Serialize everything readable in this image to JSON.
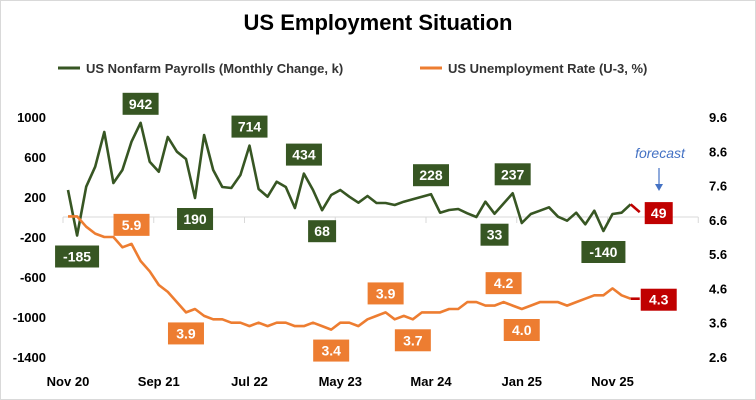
{
  "chart_data": {
    "type": "line",
    "title": "US Employment Situation",
    "x_tick_labels": [
      "Nov 20",
      "Sep 21",
      "Jul 22",
      "May 23",
      "Mar 24",
      "Jan 25",
      "Nov 25"
    ],
    "x_tick_every_months": 10,
    "left_axis": {
      "ylim": [
        -1400,
        1000
      ],
      "ticks": [
        "1000",
        "600",
        "200",
        "-200",
        "-600",
        "-1000",
        "-1400"
      ]
    },
    "right_axis": {
      "ylim": [
        2.6,
        9.6
      ],
      "ticks": [
        "9.6",
        "8.6",
        "7.6",
        "6.6",
        "5.6",
        "4.6",
        "3.6",
        "2.6"
      ]
    },
    "legend_position": "top",
    "grid": false,
    "annotation": "forecast",
    "series": [
      {
        "name": "US Nonfarm Payrolls (Monthly Change, k)",
        "axis": "left",
        "color": "#375623",
        "values": [
          270,
          -185,
          303,
          503,
          850,
          340,
          470,
          753,
          942,
          553,
          453,
          800,
          653,
          580,
          190,
          820,
          470,
          300,
          290,
          420,
          714,
          280,
          203,
          353,
          300,
          90,
          434,
          270,
          68,
          220,
          270,
          203,
          143,
          210,
          140,
          140,
          120,
          153,
          177,
          203,
          228,
          43,
          70,
          80,
          37,
          0,
          153,
          33,
          135,
          237,
          -60,
          30,
          63,
          97,
          3,
          -37,
          43,
          -73,
          63,
          -140,
          30,
          43,
          127
        ],
        "forecast": 49,
        "labels": [
          {
            "index": 1,
            "text": "-185",
            "position": "below"
          },
          {
            "index": 8,
            "text": "942",
            "position": "above"
          },
          {
            "index": 14,
            "text": "190",
            "position": "below"
          },
          {
            "index": 20,
            "text": "714",
            "position": "above"
          },
          {
            "index": 26,
            "text": "434",
            "position": "above"
          },
          {
            "index": 28,
            "text": "68",
            "position": "below"
          },
          {
            "index": 40,
            "text": "228",
            "position": "above"
          },
          {
            "index": 47,
            "text": "33",
            "position": "below"
          },
          {
            "index": 49,
            "text": "237",
            "position": "above"
          },
          {
            "index": 59,
            "text": "-140",
            "position": "below"
          }
        ],
        "forecast_label": "49"
      },
      {
        "name": "US Unemployment Rate (U-3, %)",
        "axis": "right",
        "color": "#ED7D31",
        "values": [
          6.7,
          6.7,
          6.4,
          6.2,
          6.1,
          6.1,
          5.8,
          5.9,
          5.4,
          5.1,
          4.7,
          4.5,
          4.2,
          3.9,
          4.0,
          3.8,
          3.7,
          3.7,
          3.6,
          3.6,
          3.5,
          3.6,
          3.5,
          3.6,
          3.6,
          3.5,
          3.5,
          3.6,
          3.5,
          3.4,
          3.6,
          3.6,
          3.5,
          3.7,
          3.8,
          3.9,
          3.7,
          3.8,
          3.7,
          3.9,
          3.9,
          3.9,
          4.0,
          4.0,
          4.2,
          4.2,
          4.1,
          4.1,
          4.2,
          4.1,
          4.0,
          4.1,
          4.2,
          4.2,
          4.2,
          4.1,
          4.2,
          4.3,
          4.4,
          4.4,
          4.6,
          4.4,
          4.3
        ],
        "forecast": 4.3,
        "labels": [
          {
            "index": 7,
            "text": "5.9",
            "position": "above"
          },
          {
            "index": 13,
            "text": "3.9",
            "position": "below"
          },
          {
            "index": 29,
            "text": "3.4",
            "position": "below"
          },
          {
            "index": 35,
            "text": "3.9",
            "position": "above"
          },
          {
            "index": 38,
            "text": "3.7",
            "position": "below"
          },
          {
            "index": 48,
            "text": "4.2",
            "position": "above"
          },
          {
            "index": 50,
            "text": "4.0",
            "position": "below"
          }
        ],
        "forecast_label": "4.3"
      }
    ],
    "forecast_color": "#C00000",
    "annotation_color": "#4472C4"
  }
}
